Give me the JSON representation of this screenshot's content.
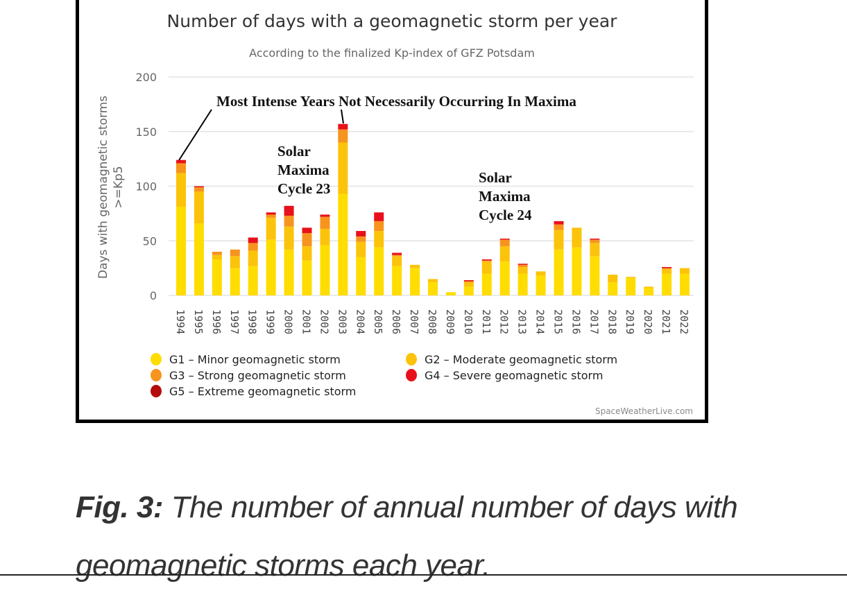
{
  "chart_data": {
    "type": "bar",
    "stacked": true,
    "title": "Number of days with a geomagnetic storm per year",
    "subtitle": "According to the finalized Kp-index of GFZ Potsdam",
    "ylabel": [
      "Days with geomagnetic storms",
      ">=Kp5"
    ],
    "xlabel": "",
    "ylim": [
      0,
      200
    ],
    "yticks": [
      0,
      50,
      100,
      150,
      200
    ],
    "grid": true,
    "legend_position": "bottom",
    "categories": [
      "1994",
      "1995",
      "1996",
      "1997",
      "1998",
      "1999",
      "2000",
      "2001",
      "2002",
      "2003",
      "2004",
      "2005",
      "2006",
      "2007",
      "2008",
      "2009",
      "2010",
      "2011",
      "2012",
      "2013",
      "2014",
      "2015",
      "2016",
      "2017",
      "2018",
      "2019",
      "2020",
      "2021",
      "2022"
    ],
    "series": [
      {
        "name": "G1 - Minor geomagnetic storm",
        "color": "#ffdd00",
        "values": [
          81,
          66,
          33,
          25,
          27,
          51,
          42,
          32,
          46,
          93,
          35,
          44,
          27,
          25,
          12,
          3,
          8,
          20,
          31,
          20,
          18,
          42,
          44,
          36,
          12,
          16,
          7,
          20,
          20
        ]
      },
      {
        "name": "G2 - Moderate geomagnetic storm",
        "color": "#fcc30b",
        "values": [
          31,
          29,
          4,
          11,
          14,
          20,
          21,
          13,
          15,
          47,
          14,
          15,
          9,
          3,
          3,
          0,
          4,
          11,
          14,
          6,
          4,
          18,
          18,
          12,
          7,
          1,
          1,
          4,
          5
        ]
      },
      {
        "name": "G3 - Strong geomagnetic storm",
        "color": "#f7941d",
        "values": [
          9,
          4,
          3,
          6,
          7,
          3,
          10,
          12,
          11,
          12,
          5,
          9,
          1,
          0,
          0,
          0,
          1,
          1,
          6,
          2,
          0,
          5,
          0,
          3,
          0,
          0,
          0,
          1,
          0
        ]
      },
      {
        "name": "G4 - Severe geomagnetic storm",
        "color": "#e8101a",
        "values": [
          3,
          1,
          0,
          0,
          5,
          2,
          9,
          5,
          2,
          5,
          5,
          8,
          2,
          0,
          0,
          0,
          1,
          1,
          1,
          1,
          0,
          3,
          0,
          1,
          0,
          0,
          0,
          1,
          0
        ]
      },
      {
        "name": "G5 - Extreme geomagnetic storm",
        "color": "#b30d0d",
        "values": [
          0,
          0,
          0,
          0,
          0,
          0,
          0,
          0,
          0,
          0,
          0,
          0,
          0,
          0,
          0,
          0,
          0,
          0,
          0,
          0,
          0,
          0,
          0,
          0,
          0,
          0,
          0,
          0,
          0
        ]
      }
    ],
    "annotations": {
      "intense": "Most Intense Years Not Necessarily Occurring In Maxima",
      "cycle23": [
        "Solar",
        "Maxima",
        "Cycle 23"
      ],
      "cycle24": [
        "Solar",
        "Maxima",
        "Cycle 24"
      ]
    },
    "credit": "SpaceWeatherLive.com"
  },
  "caption": {
    "label": "Fig. 3:",
    "text": " The number of annual number of days with geomagnetic storms each year."
  }
}
